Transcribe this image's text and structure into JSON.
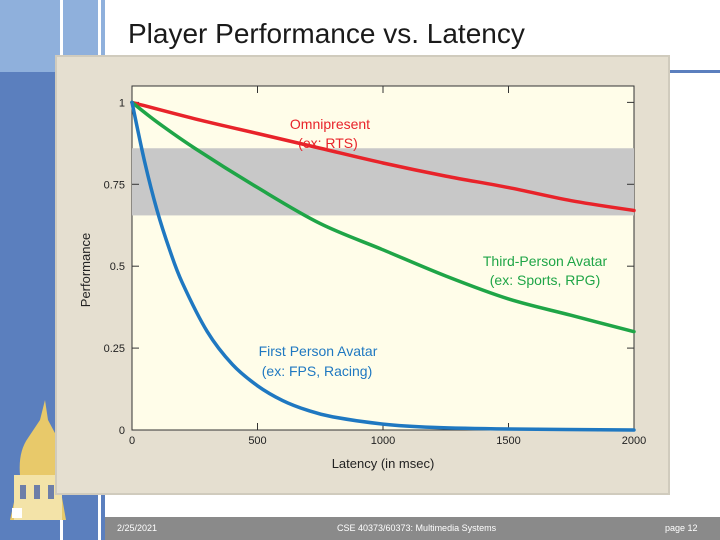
{
  "slide": {
    "title": "Player Performance vs. Latency",
    "footer_date": "2/25/2021",
    "footer_course": "CSE 40373/60373: Multimedia Systems",
    "footer_page": "page 12"
  },
  "colors": {
    "slide_blue": "#5b7fbe",
    "chart_bg": "#e5dfd0",
    "plot_bg": "#fffde9",
    "band": "#c8c8c8",
    "red": "#e8232a",
    "green": "#1fa547",
    "blue": "#1f78c1"
  },
  "chart_data": {
    "type": "line",
    "title": "",
    "xlabel": "Latency (in msec)",
    "ylabel": "Performance",
    "xlim": [
      0,
      2000
    ],
    "ylim": [
      0,
      1.05
    ],
    "x_ticks": [
      "0",
      "500",
      "1000",
      "1500",
      "2000"
    ],
    "y_ticks": [
      "0",
      "0.25",
      "0.5",
      "0.75",
      "1"
    ],
    "shaded_band": [
      0.655,
      0.86
    ],
    "series": [
      {
        "key": "omnipresent",
        "label_line1": "Omnipresent",
        "label_line2": "(ex: RTS)",
        "x": [
          0,
          250,
          500,
          750,
          1000,
          1250,
          1500,
          1750,
          2000
        ],
        "y": [
          1.0,
          0.95,
          0.905,
          0.86,
          0.815,
          0.775,
          0.74,
          0.7,
          0.67
        ]
      },
      {
        "key": "third_person",
        "label_line1": "Third-Person Avatar",
        "label_line2": "(ex: Sports, RPG)",
        "x": [
          0,
          100,
          250,
          500,
          750,
          1000,
          1250,
          1500,
          1750,
          2000
        ],
        "y": [
          1.0,
          0.94,
          0.86,
          0.74,
          0.63,
          0.55,
          0.47,
          0.4,
          0.35,
          0.3
        ]
      },
      {
        "key": "first_person",
        "label_line1": "First Person Avatar",
        "label_line2": "(ex: FPS, Racing)",
        "x": [
          0,
          50,
          100,
          150,
          200,
          300,
          400,
          500,
          600,
          700,
          800,
          1000,
          1200,
          1500,
          2000
        ],
        "y": [
          1.0,
          0.82,
          0.67,
          0.55,
          0.45,
          0.3,
          0.2,
          0.135,
          0.09,
          0.06,
          0.04,
          0.018,
          0.008,
          0.003,
          0.0
        ]
      }
    ],
    "grid": false,
    "legend": "inline labels"
  }
}
